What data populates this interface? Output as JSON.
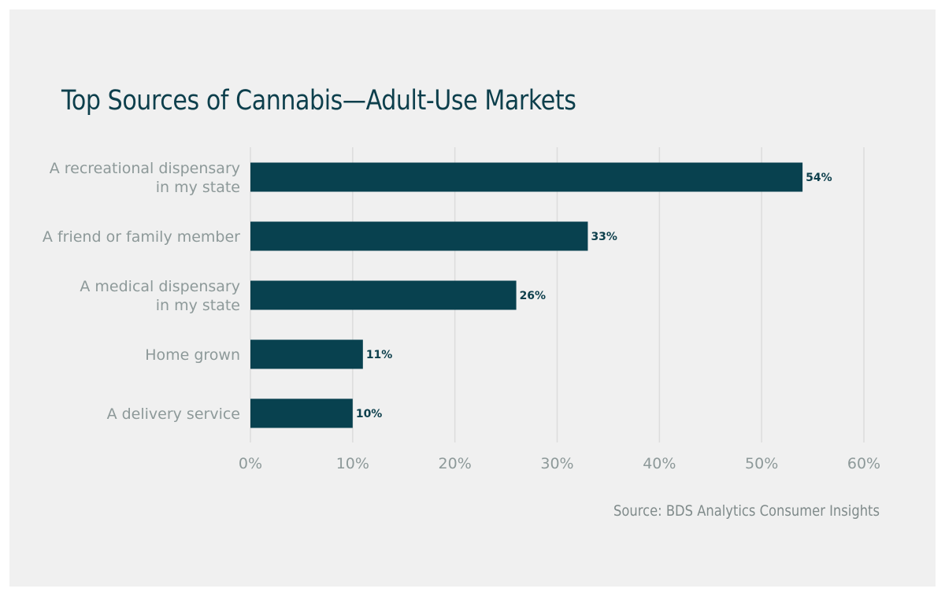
{
  "chart_data": {
    "type": "bar",
    "orientation": "horizontal",
    "title": "Top Sources of Cannabis—Adult-Use Markets",
    "categories": [
      [
        "A recreational dispensary",
        "in my state"
      ],
      [
        "A friend or family member"
      ],
      [
        "A medical dispensary",
        "in my state"
      ],
      [
        "Home grown"
      ],
      [
        "A delivery service"
      ]
    ],
    "values": [
      54,
      33,
      26,
      11,
      10
    ],
    "data_labels": [
      "54%",
      "33%",
      "26%",
      "11%",
      "10%"
    ],
    "xlim": [
      0,
      60
    ],
    "xticks": [
      0,
      10,
      20,
      30,
      40,
      50,
      60
    ],
    "xtick_labels": [
      "0%",
      "10%",
      "20%",
      "30%",
      "40%",
      "50%",
      "60%"
    ],
    "grid": "vertical",
    "bar_color": "#08414f",
    "source": "Source: BDS Analytics Consumer Insights"
  }
}
